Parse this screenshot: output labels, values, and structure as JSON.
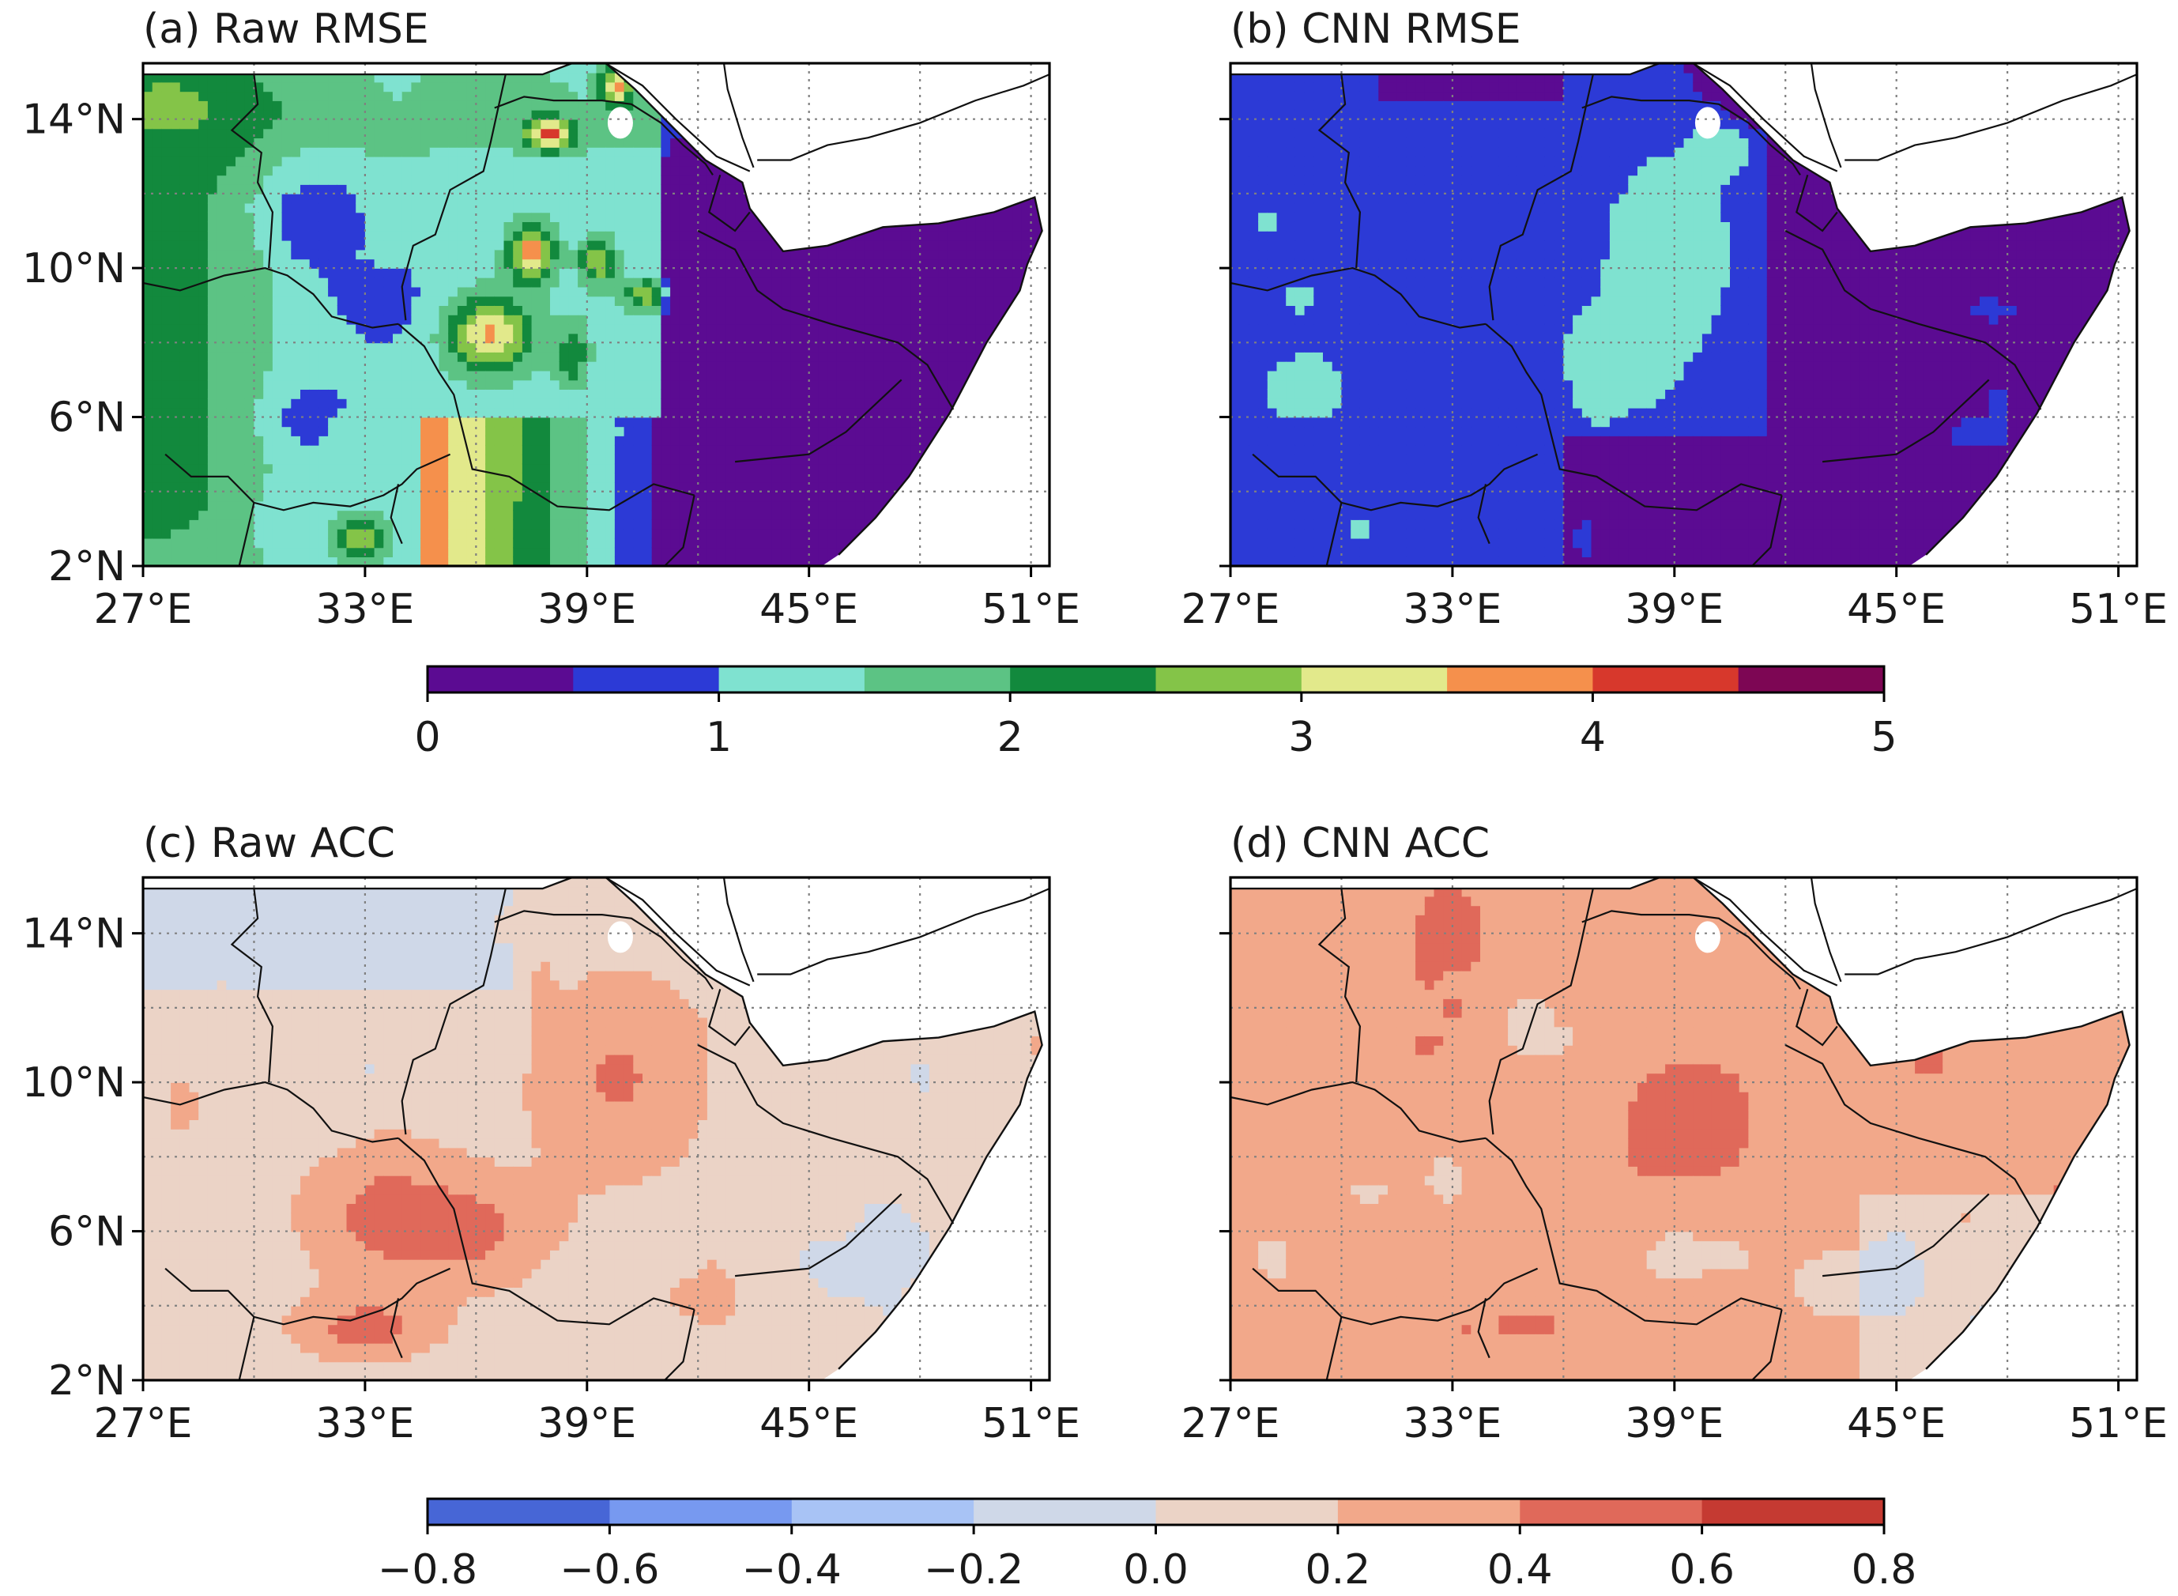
{
  "panels": [
    {
      "id": "a",
      "title": "(a) Raw RMSE",
      "field": "raw_rmse",
      "colorbar": 0
    },
    {
      "id": "b",
      "title": "(b) CNN RMSE",
      "field": "cnn_rmse",
      "colorbar": 0
    },
    {
      "id": "c",
      "title": "(c) Raw ACC",
      "field": "raw_acc",
      "colorbar": 1
    },
    {
      "id": "d",
      "title": "(d) CNN ACC",
      "field": "cnn_acc",
      "colorbar": 1
    }
  ],
  "map": {
    "lon_range": [
      27,
      51.5
    ],
    "lat_range": [
      2,
      15.5
    ],
    "x_tick_values": [
      27,
      33,
      39,
      45,
      51
    ],
    "x_tick_labels": [
      "27°E",
      "33°E",
      "39°E",
      "45°E",
      "51°E"
    ],
    "y_tick_values": [
      2,
      6,
      10,
      14
    ],
    "y_tick_labels": [
      "2°N",
      "6°N",
      "10°N",
      "14°N"
    ],
    "gridlines": "dotted",
    "gridline_lons": [
      27,
      30,
      33,
      36,
      39,
      42,
      45,
      48,
      51
    ],
    "gridline_lats": [
      2,
      4,
      6,
      8,
      10,
      12,
      14
    ]
  },
  "colorbars": [
    {
      "name": "rmse",
      "levels": [
        0,
        0.5,
        1,
        1.5,
        2,
        2.5,
        3,
        3.5,
        4,
        4.5,
        5
      ],
      "colors": [
        "#5b0b92",
        "#2c3ad6",
        "#7fe2d0",
        "#5cc384",
        "#12893d",
        "#84c448",
        "#e2e98b",
        "#f5904c",
        "#d7382c",
        "#7d0654"
      ],
      "tick_values": [
        0,
        1,
        2,
        3,
        4,
        5
      ],
      "tick_labels": [
        "0",
        "1",
        "2",
        "3",
        "4",
        "5"
      ]
    },
    {
      "name": "acc",
      "levels": [
        -0.8,
        -0.6,
        -0.4,
        -0.2,
        0.0,
        0.2,
        0.4,
        0.6,
        0.8
      ],
      "colors": [
        "#4766d6",
        "#7799f0",
        "#a8c3f5",
        "#cfd8e8",
        "#ebd3c6",
        "#f2a88a",
        "#e0695a",
        "#c53a32"
      ],
      "tick_values": [
        -0.8,
        -0.6,
        -0.4,
        -0.2,
        0.0,
        0.2,
        0.4,
        0.6,
        0.8
      ],
      "tick_labels": [
        "−0.8",
        "−0.6",
        "−0.4",
        "−0.2",
        "0.0",
        "0.2",
        "0.4",
        "0.6",
        "0.8"
      ]
    }
  ]
}
